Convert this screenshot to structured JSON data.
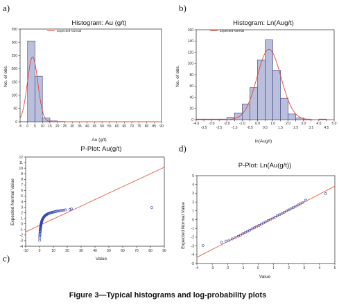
{
  "figure": {
    "caption": "Figure 3—Typical histograms and log-probability plots",
    "colors": {
      "bar_fill": "#b9bfdc",
      "bar_edge": "#3a3f7a",
      "normal_curve": "#e8432d",
      "points": "#2b3fae",
      "frame": "#000000"
    }
  },
  "chart_data": [
    {
      "panel_label": "a)",
      "type": "bar",
      "title": "Histogram: Au (g/t)",
      "xlabel": "Au (g/t)",
      "ylabel": "No. of obs.",
      "legend": {
        "entries": [
          "Expected Normal"
        ],
        "placement": "top-right"
      },
      "xlim": [
        -5,
        90
      ],
      "ylim": [
        0,
        350
      ],
      "xticks": [
        "-5",
        "0",
        "5",
        "10",
        "15",
        "20",
        "25",
        "30",
        "35",
        "40",
        "45",
        "50",
        "55",
        "60",
        "65",
        "70",
        "75",
        "80",
        "85",
        "90"
      ],
      "xtick_values": [
        -5,
        0,
        5,
        10,
        15,
        20,
        25,
        30,
        35,
        40,
        45,
        50,
        55,
        60,
        65,
        70,
        75,
        80,
        85,
        90
      ],
      "yticks": [
        "0",
        "50",
        "100",
        "150",
        "200",
        "250",
        "300",
        "350"
      ],
      "ytick_values": [
        0,
        50,
        100,
        150,
        200,
        250,
        300,
        350
      ],
      "bins": [
        [
          -5,
          0
        ],
        [
          0,
          5
        ],
        [
          5,
          10
        ],
        [
          10,
          15
        ],
        [
          15,
          20
        ],
        [
          20,
          25
        ]
      ],
      "values": [
        0,
        305,
        172,
        14,
        3,
        1
      ],
      "normal_curve": {
        "mean": 3.4,
        "sd": 3.5,
        "peak": 245
      },
      "grid": false
    },
    {
      "panel_label": "b)",
      "type": "bar",
      "title": "Histogram: Ln(Aug/t)",
      "xlabel": "ln(Aug/t)",
      "ylabel": "No. of obs.",
      "legend": {
        "entries": [
          "Expected Normal"
        ],
        "placement": "top-right"
      },
      "xlim": [
        -4,
        5
      ],
      "ylim": [
        0,
        160
      ],
      "xticks": [
        "-4.0",
        "-3.5",
        "-3.0",
        "-2.5",
        "-2.0",
        "-1.5",
        "-1.0",
        "-0.5",
        "0.0",
        "0.5",
        "1.0",
        "1.5",
        "2.0",
        "2.5",
        "3.0",
        "3.5",
        "4.0",
        "4.5",
        "5.0"
      ],
      "xtick_values": [
        -4,
        -3.5,
        -3,
        -2.5,
        -2,
        -1.5,
        -1,
        -0.5,
        0,
        0.5,
        1,
        1.5,
        2,
        2.5,
        3,
        3.5,
        4,
        4.5,
        5
      ],
      "yticks": [
        "0",
        "20",
        "40",
        "60",
        "80",
        "100",
        "120",
        "140",
        "160"
      ],
      "ytick_values": [
        0,
        20,
        40,
        60,
        80,
        100,
        120,
        140,
        160
      ],
      "bins": [
        [
          -4,
          -3.5
        ],
        [
          -3.5,
          -3
        ],
        [
          -3,
          -2.5
        ],
        [
          -2.5,
          -2
        ],
        [
          -2,
          -1.5
        ],
        [
          -1.5,
          -1
        ],
        [
          -1,
          -0.5
        ],
        [
          -0.5,
          0
        ],
        [
          0,
          0.5
        ],
        [
          0.5,
          1
        ],
        [
          1,
          1.5
        ],
        [
          1.5,
          2
        ],
        [
          2,
          2.5
        ],
        [
          2.5,
          3
        ],
        [
          3,
          3.5
        ],
        [
          3.5,
          4
        ],
        [
          4,
          4.5
        ],
        [
          4.5,
          5
        ]
      ],
      "values": [
        1,
        1,
        1,
        1,
        4,
        12,
        28,
        57,
        106,
        142,
        88,
        38,
        10,
        3,
        1,
        0,
        1,
        0
      ],
      "normal_curve": {
        "mean": 0.75,
        "sd": 0.78,
        "peak": 125
      },
      "grid": false
    },
    {
      "panel_label": "c)",
      "type": "scatter",
      "title": "P-Plot: Au(g/t)",
      "xlabel": "Value",
      "ylabel": "Expected Normal Value",
      "xlim": [
        -10,
        90
      ],
      "ylim": [
        -4,
        12
      ],
      "xticks": [
        "-10",
        "0",
        "10",
        "20",
        "30",
        "40",
        "50",
        "60",
        "70",
        "80",
        "90"
      ],
      "xtick_values": [
        -10,
        0,
        10,
        20,
        30,
        40,
        50,
        60,
        70,
        80,
        90
      ],
      "yticks": [
        "-4",
        "-3",
        "-2",
        "-1",
        "0",
        "1",
        "2",
        "3",
        "4",
        "5",
        "6",
        "7",
        "8",
        "9",
        "10",
        "11",
        "12"
      ],
      "ytick_values": [
        -4,
        -3,
        -2,
        -1,
        0,
        1,
        2,
        3,
        4,
        5,
        6,
        7,
        8,
        9,
        10,
        11,
        12
      ],
      "reference_line": {
        "slope": 0.1159,
        "intercept": -0.27
      },
      "points": {
        "x": [
          0.1,
          0.15,
          0.2,
          0.25,
          0.3,
          0.35,
          0.4,
          0.45,
          0.5,
          0.55,
          0.6,
          0.65,
          0.7,
          0.75,
          0.8,
          0.85,
          0.9,
          0.95,
          1,
          1.05,
          1.1,
          1.15,
          1.2,
          1.3,
          1.4,
          1.5,
          1.6,
          1.7,
          1.8,
          1.9,
          2,
          2.2,
          2.4,
          2.6,
          2.8,
          3,
          3.3,
          3.6,
          3.9,
          4.2,
          4.5,
          4.9,
          5.3,
          5.7,
          6.1,
          6.6,
          7.1,
          7.6,
          8.1,
          8.7,
          9.3,
          9.9,
          10.6,
          11.3,
          12,
          12.8,
          13.6,
          14.5,
          15.4,
          16.5,
          17.6,
          18.8,
          22,
          23,
          81
        ],
        "y": [
          -2.95,
          -2.5,
          -2.2,
          -1.95,
          -1.75,
          -1.58,
          -1.42,
          -1.28,
          -1.15,
          -1.03,
          -0.92,
          -0.82,
          -0.72,
          -0.63,
          -0.54,
          -0.46,
          -0.38,
          -0.3,
          -0.22,
          -0.15,
          -0.08,
          -0.01,
          0.05,
          0.15,
          0.25,
          0.35,
          0.44,
          0.52,
          0.6,
          0.68,
          0.75,
          0.85,
          0.95,
          1.04,
          1.12,
          1.2,
          1.29,
          1.37,
          1.45,
          1.52,
          1.58,
          1.65,
          1.71,
          1.77,
          1.82,
          1.87,
          1.92,
          1.96,
          2,
          2.04,
          2.08,
          2.12,
          2.16,
          2.2,
          2.24,
          2.28,
          2.32,
          2.36,
          2.4,
          2.44,
          2.48,
          2.52,
          2.6,
          2.7,
          2.95
        ]
      },
      "grid": false
    },
    {
      "panel_label": "d)",
      "type": "scatter",
      "title": "P-Plot: Ln(Au(g/t))",
      "xlabel": "Value",
      "ylabel": "Expected Normal Value",
      "xlim": [
        -4,
        5
      ],
      "ylim": [
        -5,
        5
      ],
      "xticks": [
        "-4",
        "-3",
        "-2",
        "-1",
        "0",
        "1",
        "2",
        "3",
        "4",
        "5"
      ],
      "xtick_values": [
        -4,
        -3,
        -2,
        -1,
        0,
        1,
        2,
        3,
        4,
        5
      ],
      "yticks": [
        "-5",
        "-4",
        "-3",
        "-2",
        "-1",
        "0",
        "1",
        "2",
        "3",
        "4",
        "5"
      ],
      "ytick_values": [
        -5,
        -4,
        -3,
        -2,
        -1,
        0,
        1,
        2,
        3,
        4,
        5
      ],
      "reference_line": {
        "slope": 0.9,
        "intercept": -0.7
      },
      "points": {
        "x": [
          -3.6,
          -2.4,
          -2.1,
          -1.9,
          -1.7,
          -1.5,
          -1.3,
          -1.15,
          -1,
          -0.85,
          -0.7,
          -0.55,
          -0.4,
          -0.25,
          -0.1,
          0.05,
          0.2,
          0.35,
          0.5,
          0.65,
          0.8,
          0.95,
          1.1,
          1.25,
          1.4,
          1.55,
          1.7,
          1.85,
          2,
          2.15,
          2.3,
          2.45,
          2.6,
          2.75,
          2.9,
          3.1,
          4.4
        ],
        "y": [
          -2.95,
          -2.6,
          -2.45,
          -2.35,
          -2.2,
          -2.05,
          -1.9,
          -1.75,
          -1.62,
          -1.48,
          -1.35,
          -1.2,
          -1.06,
          -0.93,
          -0.8,
          -0.66,
          -0.52,
          -0.39,
          -0.25,
          -0.11,
          0.02,
          0.16,
          0.29,
          0.43,
          0.57,
          0.7,
          0.84,
          0.98,
          1.11,
          1.25,
          1.39,
          1.53,
          1.66,
          1.8,
          1.95,
          2.2,
          2.95
        ]
      },
      "grid": false
    }
  ]
}
